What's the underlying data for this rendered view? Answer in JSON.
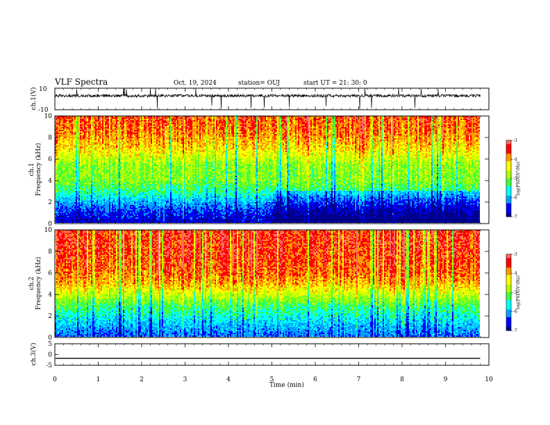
{
  "header": {
    "title": "VLF Spectra",
    "date": "Oct. 19, 2024",
    "station": "station= OUJ",
    "start_ut": "start  UT  =   21: 30: 0"
  },
  "colors": {
    "spectrogram_scale": [
      "#00008b",
      "#0000ff",
      "#00a0ff",
      "#00ffff",
      "#40ff40",
      "#b0ff00",
      "#ffff00",
      "#ff9900",
      "#ff0000",
      "#ff6a6a",
      "#ffffff"
    ]
  },
  "chart_data": [
    {
      "type": "line",
      "name": "ch1-waveform",
      "ylabel": "ch.1(V)",
      "ylim": [
        -10,
        10
      ],
      "yticks": [
        "10",
        "-10"
      ],
      "xlim": [
        0,
        10
      ],
      "baseline": 3,
      "noise_range": [
        -2,
        6
      ]
    },
    {
      "type": "heatmap",
      "name": "ch1-spectrogram",
      "ylabel_line1": "ch.1",
      "ylabel_line2": "Frequency (kHz)",
      "ylim": [
        0,
        10
      ],
      "yticks": [
        "0",
        "2",
        "4",
        "6",
        "8",
        "10"
      ],
      "xlim": [
        0,
        10
      ],
      "data_extent_min": 9.8,
      "colorbar": {
        "label": "log(PSD)(V²/Hz)",
        "range": [
          -7,
          -3
        ],
        "ticks": [
          "-3",
          "-4",
          "-5",
          "-6",
          "-7"
        ]
      },
      "level_profile_by_frequency_khz": [
        {
          "f": 0.0,
          "level": -6.8
        },
        {
          "f": 1.0,
          "level": -6.5
        },
        {
          "f": 2.0,
          "level": -6.0
        },
        {
          "f": 3.0,
          "level": -5.4
        },
        {
          "f": 4.0,
          "level": -5.0
        },
        {
          "f": 5.5,
          "level": -4.9
        },
        {
          "f": 7.0,
          "level": -4.2
        },
        {
          "f": 8.5,
          "level": -3.8
        },
        {
          "f": 10.0,
          "level": -3.6
        }
      ],
      "quiet_interval_min": [
        5.0,
        9.8
      ]
    },
    {
      "type": "heatmap",
      "name": "ch2-spectrogram",
      "ylabel_line1": "ch.2",
      "ylabel_line2": "Frequency (kHz)",
      "ylim": [
        0,
        10
      ],
      "yticks": [
        "0",
        "2",
        "4",
        "6",
        "8",
        "10"
      ],
      "xlim": [
        0,
        10
      ],
      "data_extent_min": 9.8,
      "colorbar": {
        "label": "log(PSD)(V²/Hz)",
        "range": [
          -7,
          -3
        ],
        "ticks": [
          "-3",
          "-4",
          "-5",
          "-6",
          "-7"
        ]
      },
      "level_profile_by_frequency_khz": [
        {
          "f": 0.0,
          "level": -6.3
        },
        {
          "f": 1.0,
          "level": -6.0
        },
        {
          "f": 2.0,
          "level": -5.6
        },
        {
          "f": 3.0,
          "level": -5.2
        },
        {
          "f": 4.0,
          "level": -4.6
        },
        {
          "f": 5.0,
          "level": -4.0
        },
        {
          "f": 6.0,
          "level": -3.7
        },
        {
          "f": 8.0,
          "level": -3.5
        },
        {
          "f": 10.0,
          "level": -3.4
        }
      ]
    },
    {
      "type": "line",
      "name": "ch3-waveform",
      "ylabel": "ch.3(V)",
      "ylim": [
        -5,
        5
      ],
      "yticks": [
        "5",
        "0",
        "-5"
      ],
      "xlim": [
        0,
        10
      ],
      "values_constant": -1.8,
      "xlabel": "Time  (min)",
      "xticks": [
        "0",
        "1",
        "2",
        "3",
        "4",
        "5",
        "6",
        "7",
        "8",
        "9",
        "10"
      ]
    }
  ]
}
